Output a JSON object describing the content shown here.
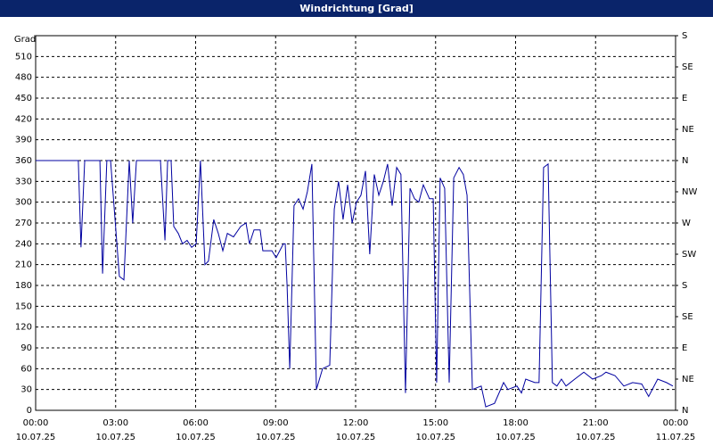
{
  "chart_data": {
    "type": "line",
    "title": "Windrichtung [Grad]",
    "y_unit_label": "Grad",
    "x": [
      0,
      1.57,
      1.6,
      1.7,
      1.84,
      2.24,
      2.41,
      2.51,
      2.67,
      2.81,
      3.14,
      3.31,
      3.51,
      3.64,
      3.78,
      4.68,
      4.85,
      4.95,
      5.08,
      5.18,
      5.35,
      5.51,
      5.68,
      5.85,
      6.02,
      6.18,
      6.35,
      6.48,
      6.68,
      6.85,
      7.02,
      7.19,
      7.42,
      7.69,
      7.89,
      8.02,
      8.19,
      8.42,
      8.52,
      8.86,
      9.02,
      9.29,
      9.36,
      9.43,
      9.53,
      9.69,
      9.86,
      10.03,
      10.19,
      10.36,
      10.53,
      10.76,
      11.03,
      11.2,
      11.36,
      11.53,
      11.7,
      11.87,
      12.03,
      12.2,
      12.37,
      12.53,
      12.7,
      12.87,
      13.04,
      13.2,
      13.37,
      13.54,
      13.7,
      13.87,
      14.04,
      14.21,
      14.37,
      14.54,
      14.77,
      14.91,
      15.04,
      15.17,
      15.34,
      15.51,
      15.68,
      15.88,
      16.04,
      16.18,
      16.38,
      16.71,
      16.88,
      17.21,
      17.55,
      17.71,
      18.05,
      18.22,
      18.38,
      18.72,
      18.88,
      19.05,
      19.22,
      19.38,
      19.55,
      19.72,
      19.89,
      20.22,
      20.56,
      20.89,
      21.22,
      21.39,
      21.73,
      22.06,
      22.39,
      22.73,
      22.99,
      23.33,
      23.66,
      23.9
    ],
    "series": [
      {
        "name": "Windrichtung",
        "color": "#0000a0",
        "values": [
          360,
          360,
          360,
          235,
          360,
          360,
          360,
          197,
          360,
          360,
          193,
          188,
          360,
          270,
          360,
          360,
          245,
          360,
          360,
          265,
          255,
          240,
          245,
          235,
          240,
          360,
          210,
          215,
          275,
          255,
          230,
          255,
          250,
          265,
          270,
          240,
          260,
          260,
          230,
          230,
          220,
          240,
          240,
          180,
          60,
          295,
          305,
          290,
          315,
          355,
          30,
          60,
          65,
          290,
          330,
          275,
          325,
          270,
          300,
          310,
          345,
          225,
          340,
          310,
          330,
          355,
          295,
          350,
          340,
          25,
          320,
          305,
          300,
          325,
          305,
          305,
          40,
          335,
          320,
          40,
          335,
          350,
          340,
          310,
          30,
          35,
          5,
          10,
          40,
          30,
          35,
          25,
          45,
          40,
          40,
          350,
          355,
          40,
          35,
          45,
          35,
          45,
          55,
          45,
          50,
          55,
          50,
          35,
          40,
          38,
          20,
          45,
          40,
          35
        ]
      }
    ],
    "xlim": [
      0,
      24
    ],
    "xticks": [
      {
        "value": 0,
        "label": "00:00"
      },
      {
        "value": 3,
        "label": "03:00"
      },
      {
        "value": 6,
        "label": "06:00"
      },
      {
        "value": 9,
        "label": "09:00"
      },
      {
        "value": 12,
        "label": "12:00"
      },
      {
        "value": 15,
        "label": "15:00"
      },
      {
        "value": 18,
        "label": "18:00"
      },
      {
        "value": 21,
        "label": "21:00"
      },
      {
        "value": 24,
        "label": "00:00"
      }
    ],
    "xtick_dates": [
      "10.07.25",
      "10.07.25",
      "10.07.25",
      "10.07.25",
      "10.07.25",
      "10.07.25",
      "10.07.25",
      "10.07.25",
      "11.07.25"
    ],
    "ylim": [
      0,
      540
    ],
    "yticks": [
      0,
      30,
      60,
      90,
      120,
      150,
      180,
      210,
      240,
      270,
      300,
      330,
      360,
      390,
      420,
      450,
      480,
      510
    ],
    "y2lim": [
      0,
      540
    ],
    "y2ticks": [
      {
        "value": 0,
        "label": "N"
      },
      {
        "value": 45,
        "label": "NE"
      },
      {
        "value": 90,
        "label": "E"
      },
      {
        "value": 135,
        "label": "SE"
      },
      {
        "value": 180,
        "label": "S"
      },
      {
        "value": 225,
        "label": "SW"
      },
      {
        "value": 270,
        "label": "W"
      },
      {
        "value": 315,
        "label": "NW"
      },
      {
        "value": 360,
        "label": "N"
      },
      {
        "value": 405,
        "label": "NE"
      },
      {
        "value": 450,
        "label": "E"
      },
      {
        "value": 495,
        "label": "SE"
      },
      {
        "value": 540,
        "label": "S"
      }
    ],
    "grid": true
  }
}
